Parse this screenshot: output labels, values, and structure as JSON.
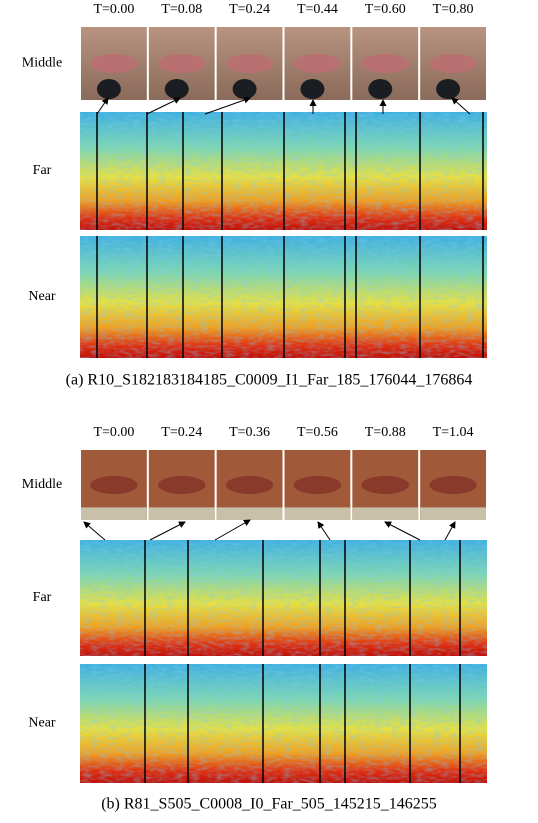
{
  "panels": [
    {
      "times": [
        "T=0.00",
        "T=0.08",
        "T=0.24",
        "T=0.44",
        "T=0.60",
        "T=0.80"
      ],
      "rows": [
        "Middle",
        "Far",
        "Near"
      ],
      "caption": "(a) R10_S182183184185_C0009_I1_Far_185_176044_176864"
    },
    {
      "times": [
        "T=0.00",
        "T=0.24",
        "T=0.36",
        "T=0.56",
        "T=0.88",
        "T=1.04"
      ],
      "rows": [
        "Middle",
        "Far",
        "Near"
      ],
      "caption": "(b) R81_S505_C0008_I0_Far_505_145215_146255"
    }
  ]
}
